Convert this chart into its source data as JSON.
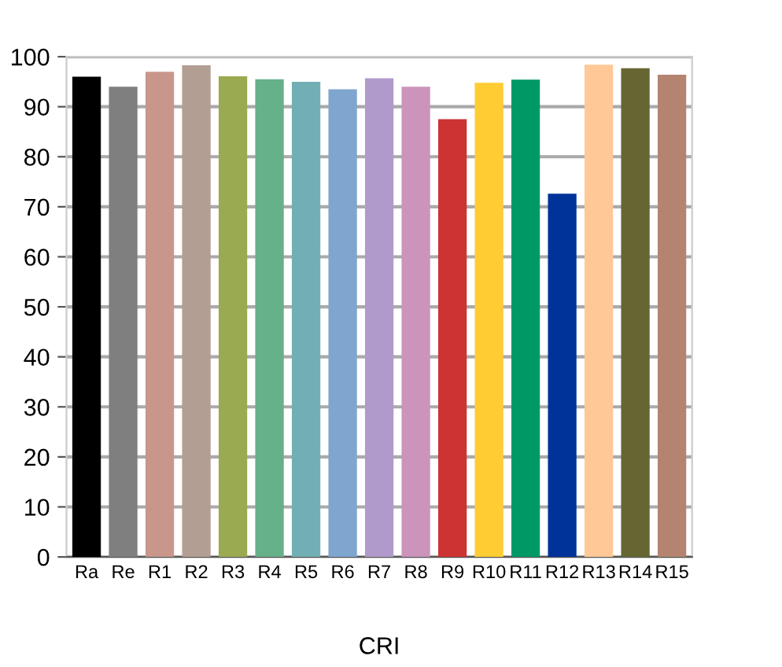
{
  "chart_data": {
    "type": "bar",
    "xlabel": "CRI",
    "categories": [
      "Ra",
      "Re",
      "R1",
      "R2",
      "R3",
      "R4",
      "R5",
      "R6",
      "R7",
      "R8",
      "R9",
      "R10",
      "R11",
      "R12",
      "R13",
      "R14",
      "R15"
    ],
    "values": [
      96,
      94,
      97,
      98.3,
      96.1,
      95.5,
      95,
      93.5,
      95.7,
      94,
      87.5,
      94.8,
      95.4,
      72.6,
      98.4,
      97.7,
      96.4
    ],
    "colors": [
      "#000000",
      "#7f7f7f",
      "#c9968c",
      "#b39e94",
      "#9aaa50",
      "#66b08a",
      "#72afb4",
      "#7ea6cf",
      "#b09acb",
      "#cc94ba",
      "#cc3333",
      "#ffcc33",
      "#009966",
      "#003399",
      "#ffc896",
      "#666633",
      "#b48470"
    ],
    "ylim": [
      0,
      100
    ],
    "yticks": [
      0,
      10,
      20,
      30,
      40,
      50,
      60,
      70,
      80,
      90,
      100
    ],
    "grid": "y"
  }
}
